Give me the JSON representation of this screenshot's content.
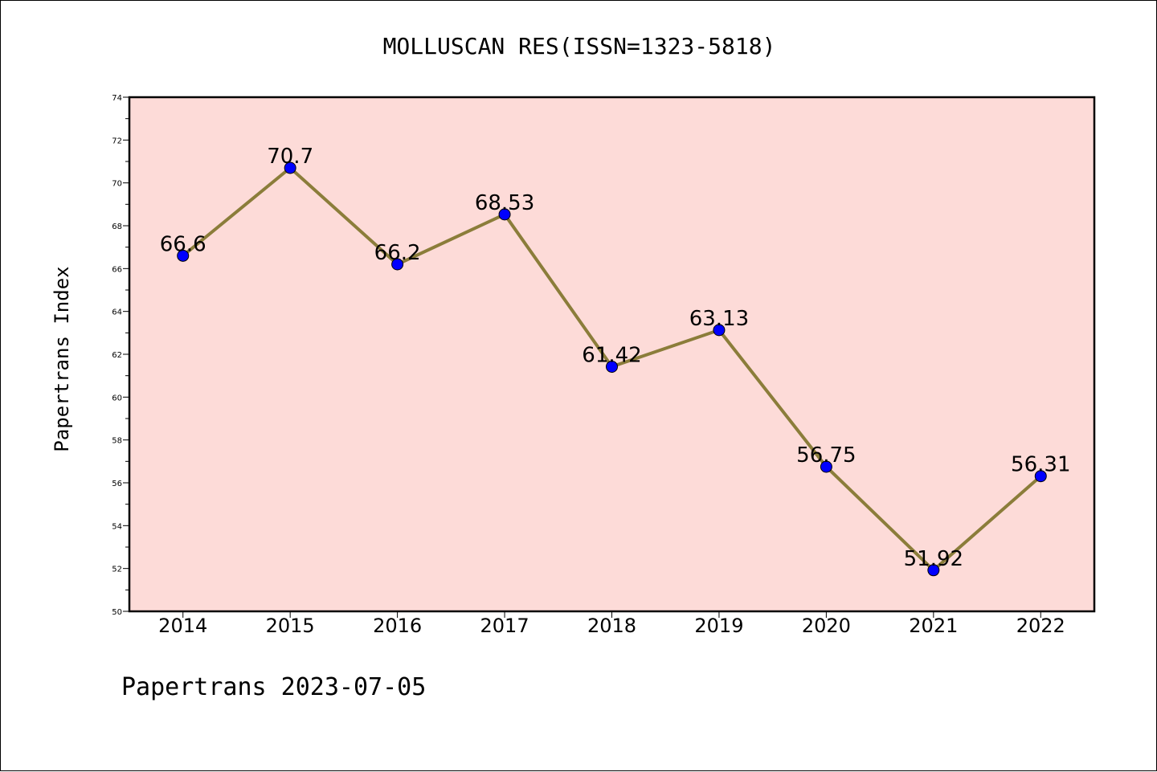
{
  "chart_data": {
    "type": "line",
    "title": "MOLLUSCAN RES(ISSN=1323-5818)",
    "ylabel": "Papertrans Index",
    "xlabel": "",
    "footer": "Papertrans 2023-07-05",
    "categories": [
      "2014",
      "2015",
      "2016",
      "2017",
      "2018",
      "2019",
      "2020",
      "2021",
      "2022"
    ],
    "series": [
      {
        "values": [
          66.6,
          70.7,
          66.2,
          68.53,
          61.42,
          63.13,
          56.75,
          51.92,
          56.31
        ],
        "labels": [
          "66.6",
          "70.7",
          "66.2",
          "68.53",
          "61.42",
          "63.13",
          "56.75",
          "51.92",
          "56.31"
        ]
      }
    ],
    "ylim": [
      50,
      74
    ],
    "yticks": [
      "50",
      "52",
      "54",
      "56",
      "58",
      "60",
      "62",
      "64",
      "66",
      "68",
      "70",
      "72",
      "74"
    ],
    "grid": false,
    "colors": {
      "plot_background": "#fddbd8",
      "line": "#8b7d3a",
      "marker": "#0000ff",
      "marker_edge": "#000000"
    }
  }
}
